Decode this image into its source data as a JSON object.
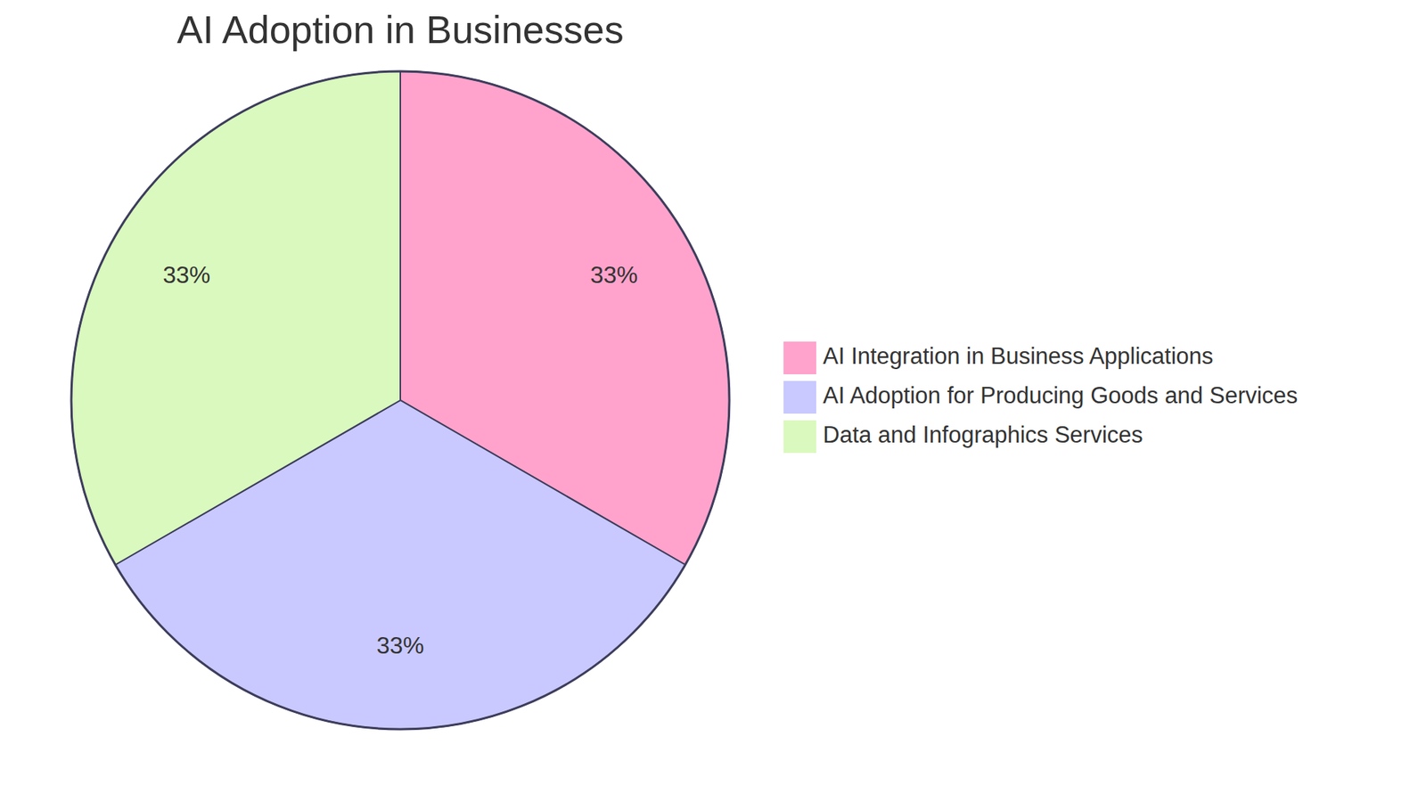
{
  "chart_data": {
    "type": "pie",
    "title": "AI Adoption in Businesses",
    "categories": [
      "AI Integration in Business Applications",
      "AI Adoption for Producing Goods and Services",
      "Data and Infographics Services"
    ],
    "values": [
      33,
      33,
      33
    ],
    "value_labels": [
      "33%",
      "33%",
      "33%"
    ],
    "colors": [
      "#ffa3cc",
      "#c9c9ff",
      "#daf9be"
    ],
    "data_labels": true,
    "legend": "right"
  }
}
